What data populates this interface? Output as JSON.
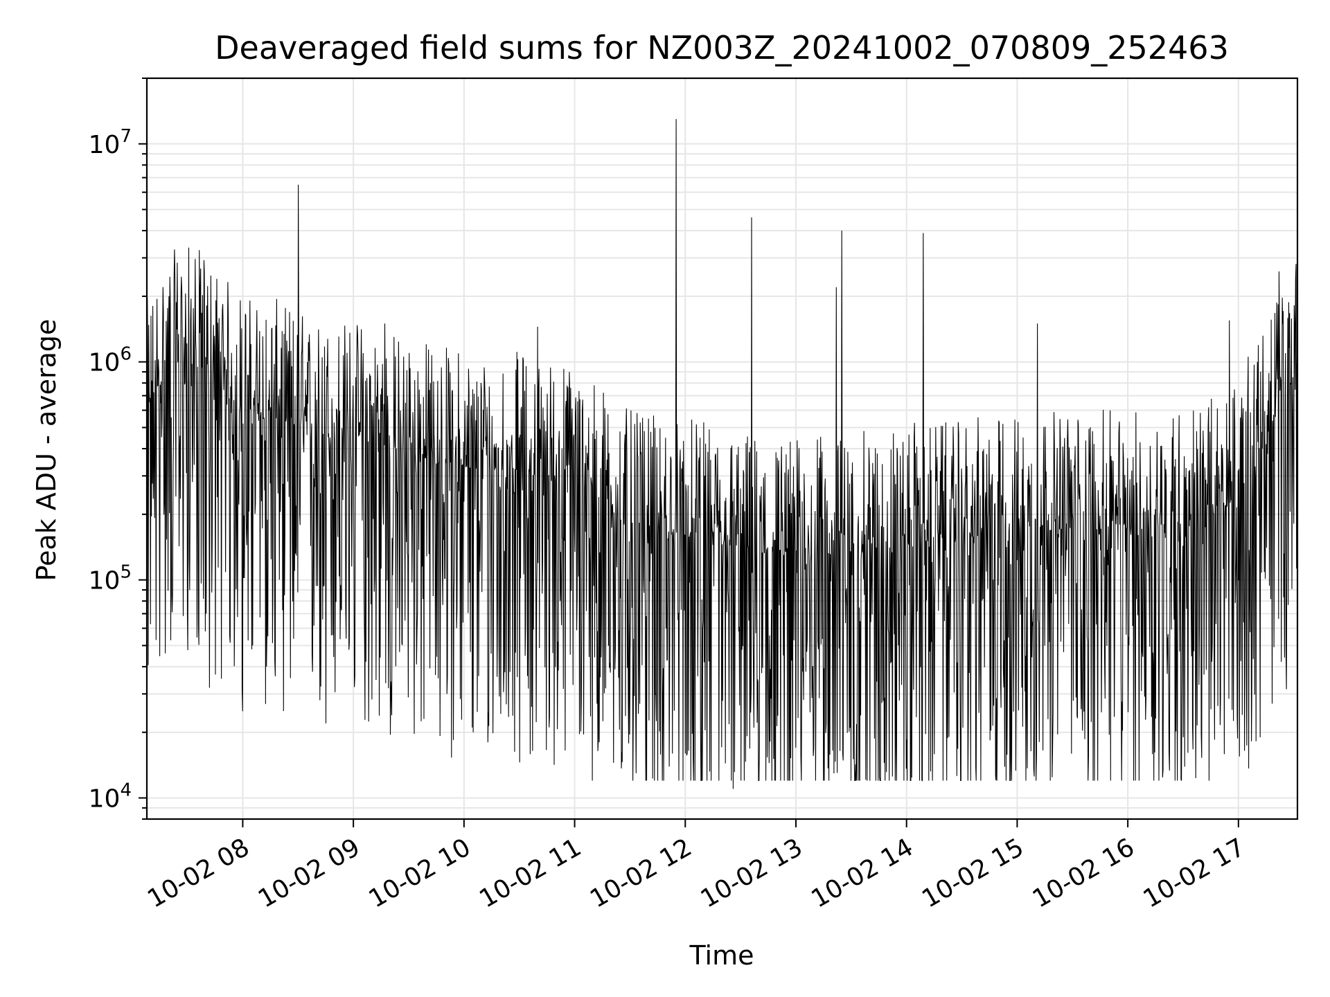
{
  "chart_data": {
    "type": "line",
    "title": "Deaveraged field sums for NZ003Z_20241002_070809_252463",
    "xlabel": "Time",
    "ylabel": "Peak ADU - average",
    "yscale": "log",
    "ylim": [
      8000,
      20000000
    ],
    "xlim": [
      "10-02 07:08",
      "10-02 17:32"
    ],
    "grid": true,
    "line_color": "#000000",
    "grid_color": "#e6e6e6",
    "x_tick_labels": [
      "10-02 08",
      "10-02 09",
      "10-02 10",
      "10-02 11",
      "10-02 12",
      "10-02 13",
      "10-02 14",
      "10-02 15",
      "10-02 16",
      "10-02 17"
    ],
    "y_tick_labels": [
      {
        "value": 10000,
        "base": "10",
        "exp": "4"
      },
      {
        "value": 100000,
        "base": "10",
        "exp": "5"
      },
      {
        "value": 1000000,
        "base": "10",
        "exp": "6"
      },
      {
        "value": 10000000,
        "base": "10",
        "exp": "7"
      }
    ],
    "series": [
      {
        "x": [
          "10-02 07:08",
          "10-02 07:15",
          "10-02 07:20",
          "10-02 07:25",
          "10-02 07:30",
          "10-02 07:35",
          "10-02 07:40",
          "10-02 07:45",
          "10-02 07:50",
          "10-02 08:00",
          "10-02 08:10",
          "10-02 08:20",
          "10-02 08:30",
          "10-02 08:40",
          "10-02 08:50",
          "10-02 09:00",
          "10-02 09:10",
          "10-02 09:20",
          "10-02 09:30",
          "10-02 09:40",
          "10-02 09:50",
          "10-02 10:00",
          "10-02 10:10",
          "10-02 10:20",
          "10-02 10:30",
          "10-02 10:40",
          "10-02 10:50",
          "10-02 11:00",
          "10-02 11:10",
          "10-02 11:20",
          "10-02 11:30",
          "10-02 11:40",
          "10-02 11:50",
          "10-02 12:00",
          "10-02 12:10",
          "10-02 12:20",
          "10-02 12:30",
          "10-02 12:40",
          "10-02 12:50",
          "10-02 13:00",
          "10-02 13:10",
          "10-02 13:20",
          "10-02 13:30",
          "10-02 13:40",
          "10-02 13:50",
          "10-02 14:00",
          "10-02 14:10",
          "10-02 14:20",
          "10-02 14:30",
          "10-02 14:40",
          "10-02 14:50",
          "10-02 15:00",
          "10-02 15:10",
          "10-02 15:20",
          "10-02 15:30",
          "10-02 15:40",
          "10-02 15:50",
          "10-02 16:00",
          "10-02 16:10",
          "10-02 16:20",
          "10-02 16:30",
          "10-02 16:40",
          "10-02 16:50",
          "10-02 17:00",
          "10-02 17:10",
          "10-02 17:20",
          "10-02 17:32"
        ],
        "median": [
          550000,
          800000,
          900000,
          950000,
          1000000,
          950000,
          900000,
          800000,
          700000,
          600000,
          550000,
          550000,
          500000,
          450000,
          450000,
          450000,
          450000,
          400000,
          380000,
          360000,
          340000,
          330000,
          320000,
          320000,
          320000,
          300000,
          300000,
          280000,
          250000,
          200000,
          170000,
          160000,
          160000,
          160000,
          150000,
          140000,
          140000,
          130000,
          130000,
          130000,
          130000,
          130000,
          130000,
          140000,
          140000,
          150000,
          150000,
          150000,
          150000,
          160000,
          160000,
          170000,
          170000,
          170000,
          170000,
          170000,
          170000,
          170000,
          170000,
          180000,
          180000,
          190000,
          200000,
          250000,
          350000,
          550000,
          900000
        ]
      }
    ],
    "spikes": [
      {
        "x": "10-02 07:20",
        "y": 2000000
      },
      {
        "x": "10-02 07:27",
        "y": 2100000
      },
      {
        "x": "10-02 07:37",
        "y": 2200000
      },
      {
        "x": "10-02 08:30",
        "y": 6500000
      },
      {
        "x": "10-02 09:17",
        "y": 1500000
      },
      {
        "x": "10-02 10:40",
        "y": 1450000
      },
      {
        "x": "10-02 11:55",
        "y": 13000000
      },
      {
        "x": "10-02 12:36",
        "y": 4600000
      },
      {
        "x": "10-02 13:22",
        "y": 2200000
      },
      {
        "x": "10-02 13:25",
        "y": 4000000
      },
      {
        "x": "10-02 14:09",
        "y": 3900000
      },
      {
        "x": "10-02 15:11",
        "y": 1500000
      },
      {
        "x": "10-02 16:55",
        "y": 1550000
      },
      {
        "x": "10-02 17:22",
        "y": 2600000
      },
      {
        "x": "10-02 17:31",
        "y": 2400000
      }
    ],
    "dips": [
      {
        "x": "10-02 07:42",
        "y": 32000
      },
      {
        "x": "10-02 08:00",
        "y": 25000
      },
      {
        "x": "10-02 08:45",
        "y": 22000
      },
      {
        "x": "10-02 09:20",
        "y": 19500
      },
      {
        "x": "10-02 10:05",
        "y": 20000
      },
      {
        "x": "10-02 10:13",
        "y": 18000
      },
      {
        "x": "10-02 11:21",
        "y": 14500
      },
      {
        "x": "10-02 12:00",
        "y": 16000
      },
      {
        "x": "10-02 12:26",
        "y": 11000
      },
      {
        "x": "10-02 13:00",
        "y": 17000
      },
      {
        "x": "10-02 13:20",
        "y": 16500
      },
      {
        "x": "10-02 14:00",
        "y": 18500
      },
      {
        "x": "10-02 15:50",
        "y": 19500
      },
      {
        "x": "10-02 16:30",
        "y": 19000
      },
      {
        "x": "10-02 16:47",
        "y": 18500
      }
    ]
  }
}
